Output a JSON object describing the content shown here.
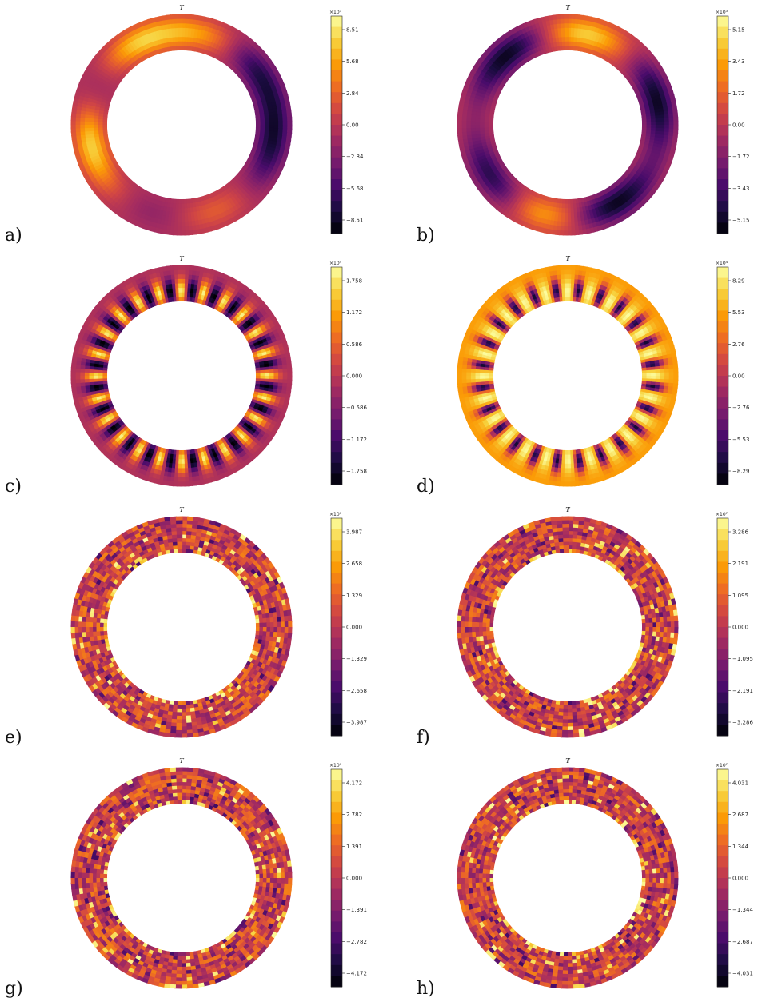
{
  "colormap": [
    "#000004",
    "#1b0c41",
    "#4a0c6b",
    "#781c6d",
    "#a52c60",
    "#cf4446",
    "#ed6925",
    "#fb9b06",
    "#f7d13d",
    "#fcffa4"
  ],
  "panels": [
    {
      "label": "a)",
      "title": "T",
      "multiplier": "×10³",
      "ticks": [
        "8.51",
        "5.68",
        "2.84",
        "0.00",
        "−2.84",
        "−5.68",
        "−8.51"
      ],
      "pattern": "modes",
      "base": 0.47,
      "modes": [
        {
          "a": 170,
          "v": 0.93
        },
        {
          "a": 20,
          "v": 0.82
        },
        {
          "a": -30,
          "v": 0.92
        },
        {
          "a": -100,
          "v": 0.95
        },
        {
          "a": 50,
          "v": 0.07
        },
        {
          "a": 100,
          "v": 0.1
        },
        {
          "a": 180,
          "v": 0.08
        },
        {
          "a": -65,
          "v": 0.2
        }
      ]
    },
    {
      "label": "b)",
      "title": "T",
      "multiplier": "×10³",
      "ticks": [
        "5.15",
        "3.43",
        "1.72",
        "0.00",
        "−1.72",
        "−3.43",
        "−5.15"
      ],
      "pattern": "modes",
      "base": 0.5,
      "modes": [
        {
          "a": 10,
          "v": 0.92
        },
        {
          "a": 200,
          "v": 0.95
        },
        {
          "a": 150,
          "v": 0.02
        },
        {
          "a": 75,
          "v": 0.05
        },
        {
          "a": -40,
          "v": 0.02
        },
        {
          "a": -130,
          "v": 0.02
        }
      ]
    },
    {
      "label": "c)",
      "title": "T",
      "multiplier": "×10⁴",
      "ticks": [
        "1.758",
        "1.172",
        "0.586",
        "0.000",
        "−0.586",
        "−1.172",
        "−1.758"
      ],
      "pattern": "cells",
      "base": 0.47,
      "cells": 24
    },
    {
      "label": "d)",
      "title": "T",
      "multiplier": "×10⁴",
      "ticks": [
        "8.29",
        "5.53",
        "2.76",
        "0.00",
        "−2.76",
        "−5.53",
        "−8.29"
      ],
      "pattern": "cells",
      "base": 0.78,
      "cells": 24
    },
    {
      "label": "e)",
      "title": "T",
      "multiplier": "×10⁷",
      "ticks": [
        "3.987",
        "2.658",
        "1.329",
        "0.000",
        "−1.329",
        "−2.658",
        "−3.987"
      ],
      "pattern": "turb",
      "seed": 3
    },
    {
      "label": "f)",
      "title": "T",
      "multiplier": "×10⁷",
      "ticks": [
        "3.286",
        "2.191",
        "1.095",
        "0.000",
        "−1.095",
        "−2.191",
        "−3.286"
      ],
      "pattern": "turb",
      "seed": 7
    },
    {
      "label": "g)",
      "title": "T",
      "multiplier": "×10⁷",
      "ticks": [
        "4.172",
        "2.782",
        "1.391",
        "0.000",
        "−1.391",
        "−2.782",
        "−4.172"
      ],
      "pattern": "turb",
      "seed": 11
    },
    {
      "label": "h)",
      "title": "T",
      "multiplier": "×10⁷",
      "ticks": [
        "4.031",
        "2.687",
        "1.344",
        "0.000",
        "−1.344",
        "−2.687",
        "−4.031"
      ],
      "pattern": "turb",
      "seed": 19
    }
  ]
}
